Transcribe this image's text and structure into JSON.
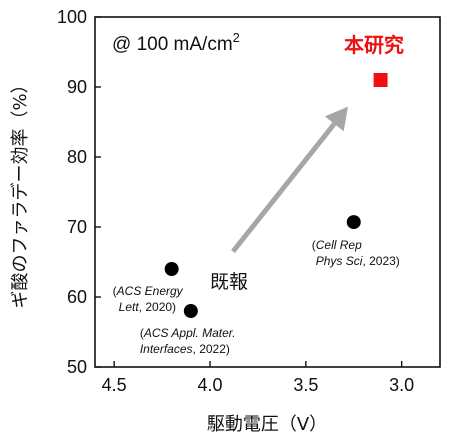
{
  "chart_data": {
    "type": "scatter",
    "xlabel": "駆動電圧（V）",
    "ylabel": "ギ酸のファラデー効率（%）",
    "xlim": [
      4.6,
      2.8
    ],
    "ylim": [
      50,
      100
    ],
    "x_reversed": true,
    "x_ticks": [
      "4.5",
      "4.0",
      "3.5",
      "3.0"
    ],
    "y_ticks": [
      "50",
      "60",
      "70",
      "80",
      "90",
      "100"
    ],
    "grid": false,
    "condition_label": "@ 100 mA/cm",
    "condition_sup": "2",
    "series": [
      {
        "name": "既報",
        "color": "#000000",
        "marker": "circle",
        "points": [
          {
            "x": 4.2,
            "y": 64,
            "ref_lines": [
              [
                "(",
                "ACS Energy"
              ],
              [
                "",
                "Lett",
                ", 2020)"
              ]
            ]
          },
          {
            "x": 4.1,
            "y": 58,
            "ref_lines": [
              [
                "(",
                "ACS Appl. Mater."
              ],
              [
                "",
                "Interfaces",
                ", 2022)"
              ]
            ]
          },
          {
            "x": 3.25,
            "y": 70.7,
            "ref_lines": [
              [
                "(",
                "Cell Rep"
              ],
              [
                "",
                "Phys Sci",
                ", 2023)"
              ]
            ]
          }
        ]
      },
      {
        "name": "本研究",
        "color": "#ee1111",
        "marker": "square",
        "points": [
          {
            "x": 3.11,
            "y": 91
          }
        ]
      }
    ],
    "arrow": {
      "from": [
        3.88,
        66.5
      ],
      "to": [
        3.28,
        87.2
      ],
      "color": "#a6a6a6"
    }
  }
}
